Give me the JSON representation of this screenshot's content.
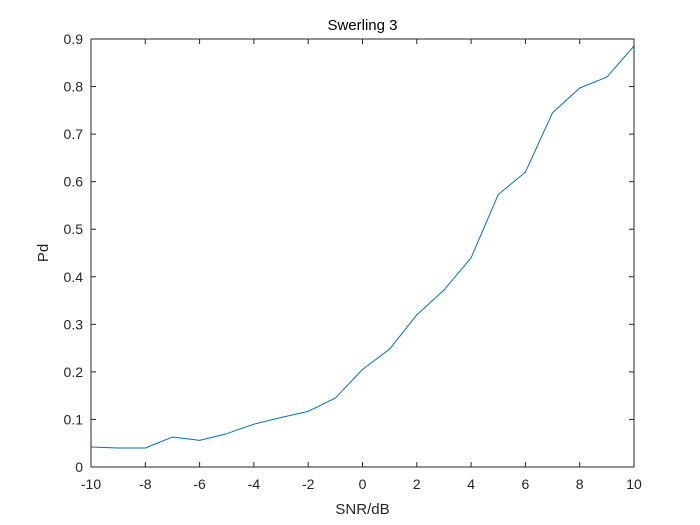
{
  "chart_data": {
    "type": "line",
    "title": "Swerling 3",
    "xlabel": "SNR/dB",
    "ylabel": "Pd",
    "xlim": [
      -10,
      10
    ],
    "ylim": [
      0,
      0.9
    ],
    "x_ticks": [
      -10,
      -8,
      -6,
      -4,
      -2,
      0,
      2,
      4,
      6,
      8,
      10
    ],
    "y_ticks": [
      0,
      0.1,
      0.2,
      0.3,
      0.4,
      0.5,
      0.6,
      0.7,
      0.8,
      0.9
    ],
    "x_tick_labels": [
      "-10",
      "-8",
      "-6",
      "-4",
      "-2",
      "0",
      "2",
      "4",
      "6",
      "8",
      "10"
    ],
    "y_tick_labels": [
      "0",
      "0.1",
      "0.2",
      "0.3",
      "0.4",
      "0.5",
      "0.6",
      "0.7",
      "0.8",
      "0.9"
    ],
    "grid": false,
    "box": true,
    "series": [
      {
        "color": "#0072BD",
        "x": [
          -10,
          -9,
          -8,
          -7,
          -6,
          -5,
          -4,
          -3,
          -2,
          -1,
          0,
          1,
          2,
          3,
          4,
          5,
          6,
          7,
          8,
          9,
          10
        ],
        "y": [
          0.042,
          0.04,
          0.04,
          0.063,
          0.056,
          0.07,
          0.09,
          0.104,
          0.117,
          0.145,
          0.205,
          0.248,
          0.32,
          0.372,
          0.44,
          0.573,
          0.62,
          0.745,
          0.797,
          0.82,
          0.885
        ]
      }
    ]
  }
}
